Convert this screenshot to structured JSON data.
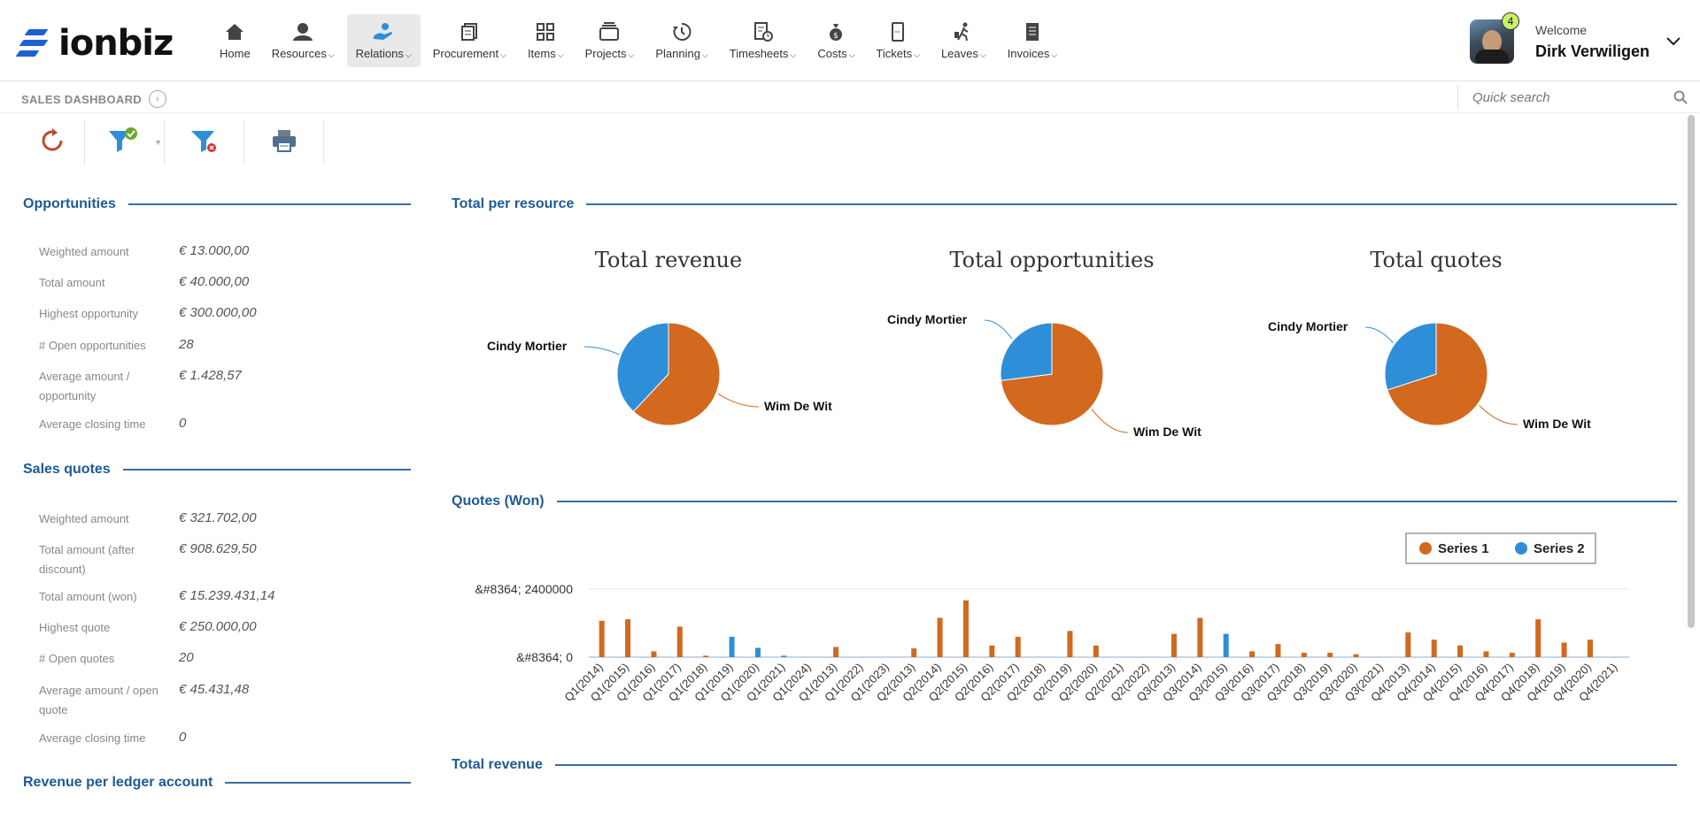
{
  "app": {
    "name": "ionbiz"
  },
  "nav": [
    {
      "label": "Home",
      "icon": "home-icon",
      "caret": false
    },
    {
      "label": "Resources",
      "icon": "resources-icon",
      "caret": true
    },
    {
      "label": "Relations",
      "icon": "relations-icon",
      "caret": true,
      "active": true
    },
    {
      "label": "Procurement",
      "icon": "procurement-icon",
      "caret": true
    },
    {
      "label": "Items",
      "icon": "items-icon",
      "caret": true
    },
    {
      "label": "Projects",
      "icon": "projects-icon",
      "caret": true
    },
    {
      "label": "Planning",
      "icon": "planning-icon",
      "caret": true
    },
    {
      "label": "Timesheets",
      "icon": "timesheets-icon",
      "caret": true
    },
    {
      "label": "Costs",
      "icon": "costs-icon",
      "caret": true
    },
    {
      "label": "Tickets",
      "icon": "tickets-icon",
      "caret": true
    },
    {
      "label": "Leaves",
      "icon": "leaves-icon",
      "caret": true
    },
    {
      "label": "Invoices",
      "icon": "invoices-icon",
      "caret": true
    }
  ],
  "user": {
    "welcome": "Welcome",
    "name": "Dirk Verwiligen",
    "notifications": "4"
  },
  "page": {
    "title": "SALES DASHBOARD"
  },
  "search": {
    "placeholder": "Quick search"
  },
  "toolbar": [
    "refresh-icon",
    "filter-applied-icon",
    "filter-clear-icon",
    "print-icon"
  ],
  "opportunities": {
    "title": "Opportunities",
    "rows": [
      {
        "label": "Weighted amount",
        "value": "€ 13.000,00"
      },
      {
        "label": "Total amount",
        "value": "€ 40.000,00"
      },
      {
        "label": "Highest opportunity",
        "value": "€ 300.000,00"
      },
      {
        "label": "# Open opportunities",
        "value": "28"
      },
      {
        "label": "Average amount / opportunity",
        "value": "€ 1.428,57"
      },
      {
        "label": "Average closing time",
        "value": "0"
      }
    ]
  },
  "sales_quotes": {
    "title": "Sales quotes",
    "rows": [
      {
        "label": "Weighted amount",
        "value": "€ 321.702,00"
      },
      {
        "label": "Total amount (after discount)",
        "value": "€ 908.629,50"
      },
      {
        "label": "Total amount (won)",
        "value": "€ 15.239.431,14"
      },
      {
        "label": "Highest quote",
        "value": "€ 250.000,00"
      },
      {
        "label": "# Open quotes",
        "value": "20"
      },
      {
        "label": "Average amount / open quote",
        "value": "€ 45.431,48"
      },
      {
        "label": "Average closing time",
        "value": "0"
      }
    ]
  },
  "revenue_ledger": {
    "title": "Revenue per ledger account"
  },
  "total_per_resource": {
    "title": "Total per resource"
  },
  "quotes_won": {
    "title": "Quotes (Won)"
  },
  "total_revenue_section": {
    "title": "Total revenue"
  },
  "colors": {
    "series1": "#d2691e",
    "series2": "#2e8fd8",
    "accent": "#1e5a96"
  },
  "chart_data": [
    {
      "type": "pie",
      "title": "Total revenue",
      "slices": [
        {
          "label": "Wim De Wit",
          "value": 62
        },
        {
          "label": "Cindy Mortier",
          "value": 38
        }
      ]
    },
    {
      "type": "pie",
      "title": "Total opportunities",
      "slices": [
        {
          "label": "Wim De Wit",
          "value": 73
        },
        {
          "label": "Cindy Mortier",
          "value": 27
        }
      ]
    },
    {
      "type": "pie",
      "title": "Total quotes",
      "slices": [
        {
          "label": "Wim De Wit",
          "value": 70
        },
        {
          "label": "Cindy Mortier",
          "value": 30
        }
      ]
    },
    {
      "type": "bar",
      "legend": "top-right",
      "ytick_labels": [
        "&#8364; 2400000",
        "&#8364; 0"
      ],
      "ylim": [
        0,
        2400000
      ],
      "categories": [
        "Q1(2014)",
        "Q1(2015)",
        "Q1(2016)",
        "Q1(2017)",
        "Q1(2018)",
        "Q1(2019)",
        "Q1(2020)",
        "Q1(2021)",
        "Q1(2024)",
        "Q1(2013)",
        "Q1(2022)",
        "Q1(2023)",
        "Q2(2013)",
        "Q2(2014)",
        "Q2(2015)",
        "Q2(2016)",
        "Q2(2017)",
        "Q2(2018)",
        "Q2(2019)",
        "Q2(2020)",
        "Q2(2021)",
        "Q2(2022)",
        "Q3(2013)",
        "Q3(2014)",
        "Q3(2015)",
        "Q3(2016)",
        "Q3(2017)",
        "Q3(2018)",
        "Q3(2019)",
        "Q3(2020)",
        "Q3(2021)",
        "Q4(2013)",
        "Q4(2014)",
        "Q4(2015)",
        "Q4(2016)",
        "Q4(2017)",
        "Q4(2018)",
        "Q4(2019)",
        "Q4(2020)",
        "Q4(2021)"
      ],
      "series": [
        {
          "name": "Series 1",
          "values": [
            1250000,
            1300000,
            200000,
            1050000,
            50000,
            0,
            0,
            0,
            0,
            350000,
            0,
            0,
            300000,
            1350000,
            1950000,
            400000,
            700000,
            0,
            900000,
            400000,
            0,
            0,
            800000,
            1350000,
            0,
            200000,
            450000,
            150000,
            150000,
            100000,
            0,
            850000,
            600000,
            400000,
            200000,
            150000,
            1300000,
            500000,
            600000,
            0
          ]
        },
        {
          "name": "Series 2",
          "values": [
            0,
            0,
            0,
            0,
            0,
            700000,
            320000,
            50000,
            0,
            0,
            0,
            0,
            0,
            0,
            0,
            0,
            0,
            0,
            0,
            0,
            0,
            0,
            0,
            0,
            800000,
            0,
            0,
            0,
            0,
            0,
            0,
            0,
            0,
            0,
            0,
            0,
            0,
            0,
            0,
            0
          ]
        }
      ]
    }
  ]
}
